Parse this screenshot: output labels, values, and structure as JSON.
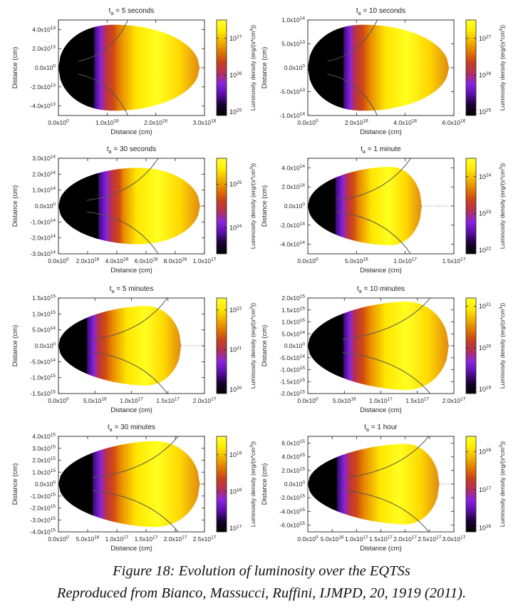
{
  "chart_data": [
    {
      "type": "heatmap",
      "title": "t_a = 5 seconds",
      "title_parts": [
        "t",
        "a",
        " = 5 seconds"
      ],
      "xlabel": "Distance (cm)",
      "ylabel": "Distance (cm)",
      "xlim": [
        0,
        3e+16
      ],
      "ylim": [
        -50000000000000.0,
        50000000000000.0
      ],
      "x_ticks": [
        0,
        1e+16,
        2e+16,
        3e+16
      ],
      "x_tick_labels": [
        [
          "0.0x10",
          "0"
        ],
        [
          "1.0x10",
          "16"
        ],
        [
          "2.0x10",
          "16"
        ],
        [
          "3.0x10",
          "16"
        ]
      ],
      "y_ticks": [
        -40000000000000.0,
        -20000000000000.0,
        0,
        20000000000000.0,
        40000000000000.0
      ],
      "y_tick_labels": [
        [
          "-4.0x10",
          "13"
        ],
        [
          "-2.0x10",
          "13"
        ],
        [
          "0.0x10",
          "0"
        ],
        [
          "2.0x10",
          "13"
        ],
        [
          "4.0x10",
          "13"
        ]
      ],
      "colorbar": {
        "label": "Luminosity density (erg/(s*cm^3))",
        "log_range": [
          24.9,
          27.5
        ],
        "ticks": [
          [
            25,
            "10",
            "25"
          ],
          [
            26,
            "10",
            "26"
          ],
          [
            27,
            "10",
            "27"
          ]
        ]
      },
      "shape": {
        "y_half_max": 45000000000000.0,
        "x_peak": 1.15e+16,
        "x_end": 2.9e+16,
        "left_radius": 1.2e+16,
        "tip_sharpness": 0
      },
      "color_profile": {
        "black_until": 0.25,
        "violet_until": 0.33,
        "yellow_from": 0.55
      }
    },
    {
      "type": "heatmap",
      "title": "t_a = 10 seconds",
      "title_parts": [
        "t",
        "a",
        " = 10 seconds"
      ],
      "xlabel": "Distance (cm)",
      "ylabel": "Distance (cm)",
      "xlim": [
        0,
        6e+16
      ],
      "ylim": [
        -100000000000000.0,
        100000000000000.0
      ],
      "x_ticks": [
        0,
        2e+16,
        4e+16,
        6e+16
      ],
      "x_tick_labels": [
        [
          "0.0x10",
          "0"
        ],
        [
          "2.0x10",
          "16"
        ],
        [
          "4.0x10",
          "16"
        ],
        [
          "6.0x10",
          "16"
        ]
      ],
      "y_ticks": [
        -100000000000000.0,
        -50000000000000.0,
        0,
        50000000000000.0,
        100000000000000.0
      ],
      "y_tick_labels": [
        [
          "-1.0x10",
          "14"
        ],
        [
          "-5.0x10",
          "13"
        ],
        [
          "0.0x10",
          "0"
        ],
        [
          "5.0x10",
          "13"
        ],
        [
          "1.0x10",
          "14"
        ]
      ],
      "colorbar": {
        "label": "Luminosity density (erg/(s*cm^3))",
        "log_range": [
          24.9,
          27.5
        ],
        "ticks": [
          [
            25,
            "10",
            "25"
          ],
          [
            26,
            "10",
            "26"
          ],
          [
            27,
            "10",
            "27"
          ]
        ]
      },
      "shape": {
        "y_half_max": 90000000000000.0,
        "x_peak": 2.3e+16,
        "x_end": 5.8e+16,
        "left_radius": 2.3e+16,
        "tip_sharpness": 0
      },
      "color_profile": {
        "black_until": 0.25,
        "violet_until": 0.33,
        "yellow_from": 0.55
      }
    },
    {
      "type": "heatmap",
      "title": "t_a = 30 seconds",
      "title_parts": [
        "t",
        "a",
        " = 30 seconds"
      ],
      "xlabel": "Distance (cm)",
      "ylabel": "Distance (cm)",
      "xlim": [
        0,
        1e+17
      ],
      "ylim": [
        -300000000000000.0,
        300000000000000.0
      ],
      "x_ticks": [
        0,
        2e+16,
        4e+16,
        6e+16,
        8e+16,
        1e+17
      ],
      "x_tick_labels": [
        [
          "0.0x10",
          "0"
        ],
        [
          "2.0x10",
          "16"
        ],
        [
          "4.0x10",
          "16"
        ],
        [
          "6.0x10",
          "16"
        ],
        [
          "8.0x10",
          "16"
        ],
        [
          "1.0x10",
          "17"
        ]
      ],
      "y_ticks": [
        -300000000000000.0,
        -200000000000000.0,
        -100000000000000.0,
        0,
        100000000000000.0,
        200000000000000.0,
        300000000000000.0
      ],
      "y_tick_labels": [
        [
          "-3.0x10",
          "14"
        ],
        [
          "-2.0x10",
          "14"
        ],
        [
          "-1.0x10",
          "14"
        ],
        [
          "0.0x10",
          "0"
        ],
        [
          "1.0x10",
          "14"
        ],
        [
          "2.0x10",
          "14"
        ],
        [
          "3.0x10",
          "14"
        ]
      ],
      "colorbar": {
        "label": "Luminosity density (erg/(s*cm^3))",
        "log_range": [
          23.4,
          25.6
        ],
        "ticks": [
          [
            24,
            "10",
            "24"
          ],
          [
            25,
            "10",
            "25"
          ]
        ]
      },
      "shape": {
        "y_half_max": 240000000000000.0,
        "x_peak": 5.5e+16,
        "x_end": 9.7e+16,
        "left_radius": 3.5e+16,
        "tip_sharpness": 0.35
      },
      "color_profile": {
        "black_until": 0.28,
        "violet_until": 0.37,
        "yellow_from": 0.55
      }
    },
    {
      "type": "heatmap",
      "title": "t_a = 1 minute",
      "title_parts": [
        "t",
        "a",
        " = 1 minute"
      ],
      "xlabel": "Distance (cm)",
      "ylabel": "Distance (cm)",
      "xlim": [
        0,
        1.5e+17
      ],
      "ylim": [
        -500000000000000.0,
        500000000000000.0
      ],
      "x_ticks": [
        0,
        5e+16,
        1e+17,
        1.5e+17
      ],
      "x_tick_labels": [
        [
          "0.0x10",
          "0"
        ],
        [
          "5.0x10",
          "16"
        ],
        [
          "1.0x10",
          "17"
        ],
        [
          "1.5x10",
          "17"
        ]
      ],
      "y_ticks": [
        -400000000000000.0,
        -200000000000000.0,
        0,
        200000000000000.0,
        400000000000000.0
      ],
      "y_tick_labels": [
        [
          "-4.0x10",
          "14"
        ],
        [
          "-2.0x10",
          "14"
        ],
        [
          "0.0x10",
          "0"
        ],
        [
          "2.0x10",
          "14"
        ],
        [
          "4.0x10",
          "14"
        ]
      ],
      "colorbar": {
        "label": "Luminosity density (erg/(s*cm^3))",
        "log_range": [
          21.9,
          24.5
        ],
        "ticks": [
          [
            22,
            "10",
            "22"
          ],
          [
            23,
            "10",
            "23"
          ],
          [
            24,
            "10",
            "24"
          ]
        ]
      },
      "shape": {
        "y_half_max": 410000000000000.0,
        "x_peak": 8.5e+16,
        "x_end": 1.17e+17,
        "left_radius": 5e+16,
        "tip_sharpness": 0.6
      },
      "color_profile": {
        "black_until": 0.24,
        "violet_until": 0.34,
        "yellow_from": 0.56
      }
    },
    {
      "type": "heatmap",
      "title": "t_a = 5 minutes",
      "title_parts": [
        "t",
        "a",
        " = 5 minutes"
      ],
      "xlabel": "Distance (cm)",
      "ylabel": "Distance (cm)",
      "xlim": [
        0,
        2e+17
      ],
      "ylim": [
        -1500000000000000.0,
        1500000000000000.0
      ],
      "x_ticks": [
        0,
        5e+16,
        1e+17,
        1.5e+17,
        2e+17
      ],
      "x_tick_labels": [
        [
          "0.0x10",
          "0"
        ],
        [
          "5.0x10",
          "16"
        ],
        [
          "1.0x10",
          "17"
        ],
        [
          "1.5x10",
          "17"
        ],
        [
          "2.0x10",
          "17"
        ]
      ],
      "y_ticks": [
        -1500000000000000.0,
        -1000000000000000.0,
        -500000000000000.0,
        0,
        500000000000000.0,
        1000000000000000.0,
        1500000000000000.0
      ],
      "y_tick_labels": [
        [
          "-1.5x10",
          "15"
        ],
        [
          "-1.0x10",
          "15"
        ],
        [
          "-5.0x10",
          "14"
        ],
        [
          "0.0x10",
          "0"
        ],
        [
          "5.0x10",
          "14"
        ],
        [
          "1.0x10",
          "15"
        ],
        [
          "1.5x10",
          "15"
        ]
      ],
      "colorbar": {
        "label": "Luminosity density (erg/(s*cm^3))",
        "log_range": [
          19.9,
          22.3
        ],
        "ticks": [
          [
            20,
            "10",
            "20"
          ],
          [
            21,
            "10",
            "21"
          ],
          [
            22,
            "10",
            "22"
          ]
        ]
      },
      "shape": {
        "y_half_max": 1250000000000000.0,
        "x_peak": 1.2e+17,
        "x_end": 1.68e+17,
        "left_radius": 6e+16,
        "tip_sharpness": 0.75
      },
      "color_profile": {
        "black_until": 0.23,
        "violet_until": 0.32,
        "yellow_from": 0.56
      }
    },
    {
      "type": "heatmap",
      "title": "t_a = 10 minutes",
      "title_parts": [
        "t",
        "a",
        " = 10 minutes"
      ],
      "xlabel": "Distance (cm)",
      "ylabel": "Distance (cm)",
      "xlim": [
        0,
        2e+17
      ],
      "ylim": [
        -2000000000000000.0,
        2000000000000000.0
      ],
      "x_ticks": [
        0,
        5e+16,
        1e+17,
        1.5e+17,
        2e+17
      ],
      "x_tick_labels": [
        [
          "0.0x10",
          "0"
        ],
        [
          "5.0x10",
          "16"
        ],
        [
          "1.0x10",
          "17"
        ],
        [
          "1.5x10",
          "17"
        ],
        [
          "2.0x10",
          "17"
        ]
      ],
      "y_ticks": [
        -2000000000000000.0,
        -1500000000000000.0,
        -1000000000000000.0,
        -500000000000000.0,
        0,
        500000000000000.0,
        1000000000000000.0,
        1500000000000000.0,
        2000000000000000.0
      ],
      "y_tick_labels": [
        [
          "-2.0x10",
          "15"
        ],
        [
          "-1.5x10",
          "15"
        ],
        [
          "-1.0x10",
          "15"
        ],
        [
          "-5.0x10",
          "14"
        ],
        [
          "0.0x10",
          "0"
        ],
        [
          "5.0x10",
          "14"
        ],
        [
          "1.0x10",
          "15"
        ],
        [
          "1.5x10",
          "15"
        ],
        [
          "2.0x10",
          "15"
        ]
      ],
      "colorbar": {
        "label": "Luminosity density (erg/(s*cm^3))",
        "log_range": [
          18.9,
          21.2
        ],
        "ticks": [
          [
            19,
            "10",
            "19"
          ],
          [
            20,
            "10",
            "20"
          ],
          [
            21,
            "10",
            "21"
          ]
        ]
      },
      "shape": {
        "y_half_max": 1850000000000000.0,
        "x_peak": 1.35e+17,
        "x_end": 1.93e+17,
        "left_radius": 7e+16,
        "tip_sharpness": 0.8
      },
      "color_profile": {
        "black_until": 0.25,
        "violet_until": 0.33,
        "yellow_from": 0.55
      }
    },
    {
      "type": "heatmap",
      "title": "t_a = 30 minutes",
      "title_parts": [
        "t",
        "a",
        " = 30 minutes"
      ],
      "xlabel": "Distance (cm)",
      "ylabel": "Distance (cm)",
      "xlim": [
        0,
        2.5e+17
      ],
      "ylim": [
        -4000000000000000.0,
        4000000000000000.0
      ],
      "x_ticks": [
        0,
        5e+16,
        1e+17,
        1.5e+17,
        2e+17,
        2.5e+17
      ],
      "x_tick_labels": [
        [
          "0.0x10",
          "0"
        ],
        [
          "5.0x10",
          "16"
        ],
        [
          "1.0x10",
          "17"
        ],
        [
          "1.5x10",
          "17"
        ],
        [
          "2.0x10",
          "17"
        ],
        [
          "2.5x10",
          "17"
        ]
      ],
      "y_ticks": [
        -4000000000000000.0,
        -3000000000000000.0,
        -2000000000000000.0,
        -1000000000000000.0,
        0,
        1000000000000000.0,
        2000000000000000.0,
        3000000000000000.0,
        4000000000000000.0
      ],
      "y_tick_labels": [
        [
          "-4.0x10",
          "15"
        ],
        [
          "-3.0x10",
          "15"
        ],
        [
          "-2.0x10",
          "15"
        ],
        [
          "-1.0x10",
          "15"
        ],
        [
          "0.0x10",
          "0"
        ],
        [
          "1.0x10",
          "15"
        ],
        [
          "2.0x10",
          "15"
        ],
        [
          "3.0x10",
          "15"
        ],
        [
          "4.0x10",
          "15"
        ]
      ],
      "colorbar": {
        "label": "Luminosity density (erg/(s*cm^3))",
        "log_range": [
          16.9,
          19.5
        ],
        "ticks": [
          [
            17,
            "10",
            "17"
          ],
          [
            18,
            "10",
            "18"
          ],
          [
            19,
            "10",
            "19"
          ]
        ]
      },
      "shape": {
        "y_half_max": 3600000000000000.0,
        "x_peak": 1.65e+17,
        "x_end": 2.42e+17,
        "left_radius": 9e+16,
        "tip_sharpness": 0.8
      },
      "color_profile": {
        "black_until": 0.24,
        "violet_until": 0.33,
        "yellow_from": 0.55
      }
    },
    {
      "type": "heatmap",
      "title": "t_a = 1 hour",
      "title_parts": [
        "t",
        "a",
        " = 1 hour"
      ],
      "xlabel": "Distance (cm)",
      "ylabel": "Distance (cm)",
      "xlim": [
        0,
        3e+17
      ],
      "ylim": [
        -7000000000000000.0,
        7000000000000000.0
      ],
      "x_ticks": [
        0,
        5e+16,
        1e+17,
        1.5e+17,
        2e+17,
        2.5e+17,
        3e+17
      ],
      "x_tick_labels": [
        [
          "0.0x10",
          "0"
        ],
        [
          "5.0x10",
          "16"
        ],
        [
          "1.0x10",
          "17"
        ],
        [
          "1.5x10",
          "17"
        ],
        [
          "2.0x10",
          "17"
        ],
        [
          "2.5x10",
          "17"
        ],
        [
          "3.0x10",
          "17"
        ]
      ],
      "y_ticks": [
        -6000000000000000.0,
        -4000000000000000.0,
        -2000000000000000.0,
        0,
        2000000000000000.0,
        4000000000000000.0,
        6000000000000000.0
      ],
      "y_tick_labels": [
        [
          "-6.0x10",
          "15"
        ],
        [
          "-4.0x10",
          "15"
        ],
        [
          "-2.0x10",
          "15"
        ],
        [
          "0.0x10",
          "0"
        ],
        [
          "2.0x10",
          "15"
        ],
        [
          "4.0x10",
          "15"
        ],
        [
          "6.0x10",
          "15"
        ]
      ],
      "colorbar": {
        "label": "Luminosity density (erg/(s*cm^3))",
        "log_range": [
          15.9,
          18.4
        ],
        "ticks": [
          [
            16,
            "10",
            "16"
          ],
          [
            17,
            "10",
            "17"
          ],
          [
            18,
            "10",
            "18"
          ]
        ]
      },
      "shape": {
        "y_half_max": 5900000000000000.0,
        "x_peak": 2e+17,
        "x_end": 2.7e+17,
        "left_radius": 1e+17,
        "tip_sharpness": 0.85
      },
      "color_profile": {
        "black_until": 0.22,
        "violet_until": 0.31,
        "yellow_from": 0.55
      }
    }
  ],
  "colormap": [
    "#000000",
    "#1a0033",
    "#5a0fa8",
    "#8a24e0",
    "#b3305a",
    "#c8401d",
    "#e07a00",
    "#f2b400",
    "#ffec00",
    "#ffff33"
  ],
  "contour_color": "#555555",
  "caption": {
    "line1": "Figure 18: Evolution of luminosity over the EQTSs",
    "line2": "Reproduced from Bianco, Massucci, Ruffini, IJMPD, 20, 1919 (2011)."
  }
}
